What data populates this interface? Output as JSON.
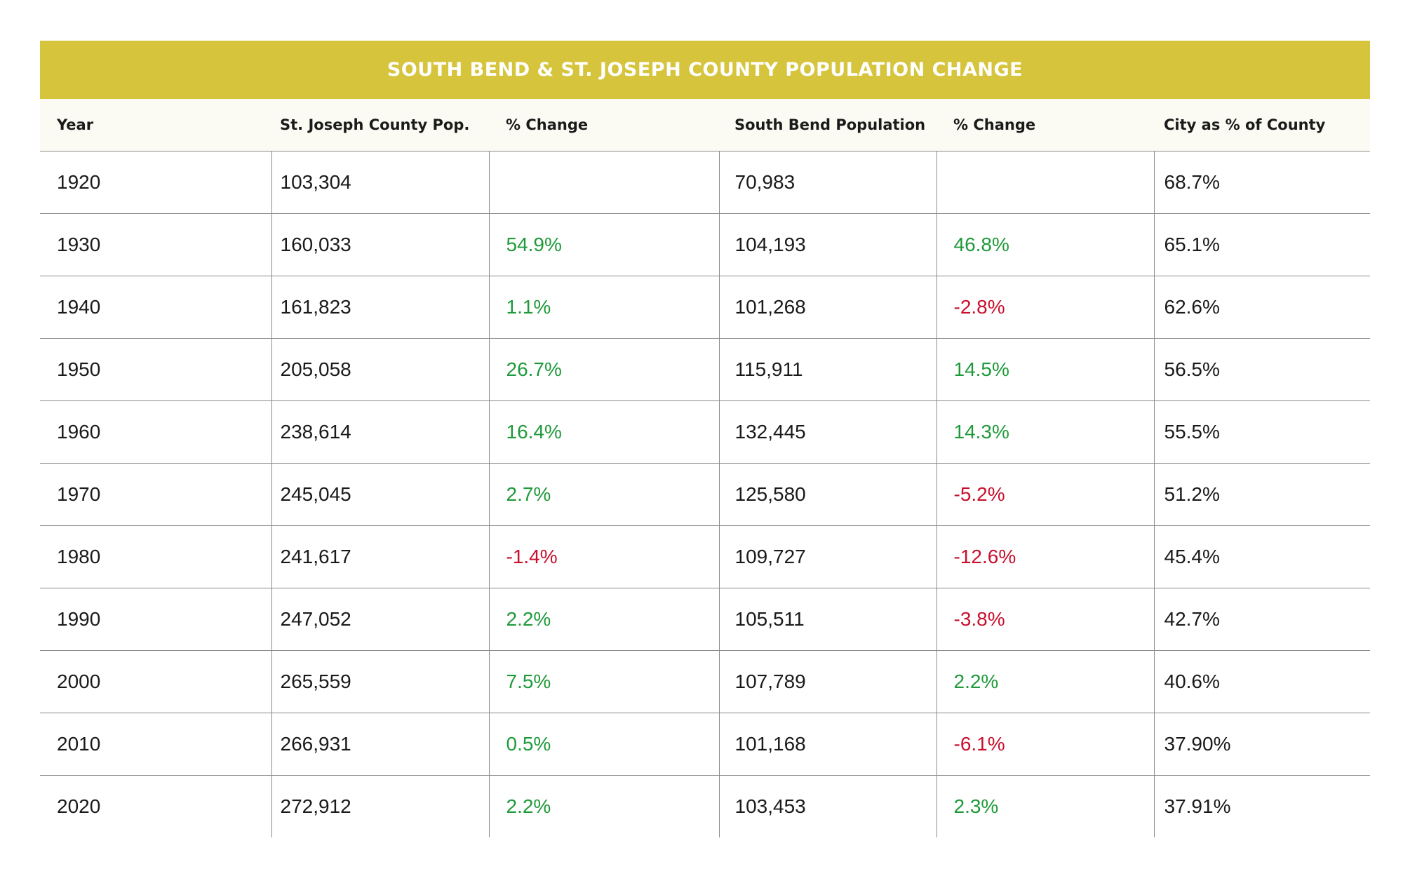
{
  "title": "SOUTH BEND & ST. JOSEPH COUNTY POPULATION CHANGE",
  "columns": [
    "Year",
    "St. Joseph County Pop.",
    "% Change",
    "South Bend Population",
    "% Change",
    "City as % of County"
  ],
  "colors": {
    "title_bar": "#d5c43c",
    "positive": "#1f9a3a",
    "negative": "#c8102e"
  },
  "rows": [
    {
      "year": "1920",
      "county_pop": "103,304",
      "county_change": "",
      "county_dir": "",
      "city_pop": "70,983",
      "city_change": "",
      "city_dir": "",
      "city_pct": "68.7%"
    },
    {
      "year": "1930",
      "county_pop": "160,033",
      "county_change": "54.9%",
      "county_dir": "pos",
      "city_pop": "104,193",
      "city_change": "46.8%",
      "city_dir": "pos",
      "city_pct": "65.1%"
    },
    {
      "year": "1940",
      "county_pop": "161,823",
      "county_change": "1.1%",
      "county_dir": "pos",
      "city_pop": "101,268",
      "city_change": "-2.8%",
      "city_dir": "neg",
      "city_pct": "62.6%"
    },
    {
      "year": "1950",
      "county_pop": "205,058",
      "county_change": "26.7%",
      "county_dir": "pos",
      "city_pop": "115,911",
      "city_change": "14.5%",
      "city_dir": "pos",
      "city_pct": "56.5%"
    },
    {
      "year": "1960",
      "county_pop": "238,614",
      "county_change": "16.4%",
      "county_dir": "pos",
      "city_pop": "132,445",
      "city_change": "14.3%",
      "city_dir": "pos",
      "city_pct": "55.5%"
    },
    {
      "year": "1970",
      "county_pop": "245,045",
      "county_change": "2.7%",
      "county_dir": "pos",
      "city_pop": "125,580",
      "city_change": "-5.2%",
      "city_dir": "neg",
      "city_pct": "51.2%"
    },
    {
      "year": "1980",
      "county_pop": "241,617",
      "county_change": "-1.4%",
      "county_dir": "neg",
      "city_pop": "109,727",
      "city_change": "-12.6%",
      "city_dir": "neg",
      "city_pct": "45.4%"
    },
    {
      "year": "1990",
      "county_pop": "247,052",
      "county_change": "2.2%",
      "county_dir": "pos",
      "city_pop": "105,511",
      "city_change": "-3.8%",
      "city_dir": "neg",
      "city_pct": "42.7%"
    },
    {
      "year": "2000",
      "county_pop": "265,559",
      "county_change": "7.5%",
      "county_dir": "pos",
      "city_pop": "107,789",
      "city_change": "2.2%",
      "city_dir": "pos",
      "city_pct": "40.6%"
    },
    {
      "year": "2010",
      "county_pop": "266,931",
      "county_change": "0.5%",
      "county_dir": "pos",
      "city_pop": "101,168",
      "city_change": "-6.1%",
      "city_dir": "neg",
      "city_pct": "37.90%"
    },
    {
      "year": "2020",
      "county_pop": "272,912",
      "county_change": "2.2%",
      "county_dir": "pos",
      "city_pop": "103,453",
      "city_change": "2.3%",
      "city_dir": "pos",
      "city_pct": "37.91%"
    }
  ]
}
